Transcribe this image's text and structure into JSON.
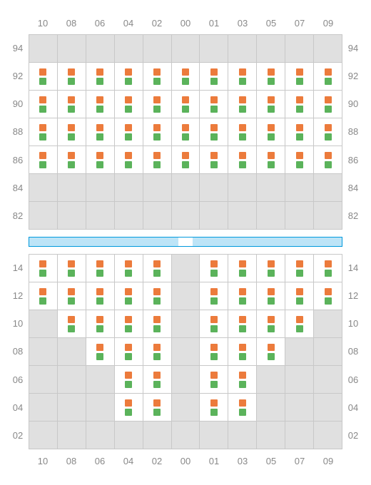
{
  "structure": {
    "type": "heatmap",
    "columns": 11,
    "background_color": "#ffffff",
    "grid_inactive_color": "#e0e0e0",
    "grid_active_color": "#ffffff",
    "grid_border_color": "#c8c8c8",
    "label_color": "#888888",
    "label_fontsize": 13,
    "marker_top_color": "#ec7b3c",
    "marker_bottom_color": "#5bb35b",
    "marker_size": 10,
    "divider_fill": "#bde4f7",
    "divider_border": "#0099dd"
  },
  "xlabels": [
    "10",
    "08",
    "06",
    "04",
    "02",
    "00",
    "01",
    "03",
    "05",
    "07",
    "09"
  ],
  "top": {
    "ylabels": [
      "94",
      "92",
      "90",
      "88",
      "86",
      "84",
      "82"
    ],
    "active_cols_per_row": [
      [],
      [
        0,
        1,
        2,
        3,
        4,
        5,
        6,
        7,
        8,
        9,
        10
      ],
      [
        0,
        1,
        2,
        3,
        4,
        5,
        6,
        7,
        8,
        9,
        10
      ],
      [
        0,
        1,
        2,
        3,
        4,
        5,
        6,
        7,
        8,
        9,
        10
      ],
      [
        0,
        1,
        2,
        3,
        4,
        5,
        6,
        7,
        8,
        9,
        10
      ],
      [],
      []
    ]
  },
  "bottom": {
    "ylabels": [
      "14",
      "12",
      "10",
      "08",
      "06",
      "04",
      "02"
    ],
    "active_cols_per_row": [
      [
        0,
        1,
        2,
        3,
        4,
        6,
        7,
        8,
        9,
        10
      ],
      [
        0,
        1,
        2,
        3,
        4,
        6,
        7,
        8,
        9,
        10
      ],
      [
        1,
        2,
        3,
        4,
        6,
        7,
        8,
        9
      ],
      [
        2,
        3,
        4,
        6,
        7,
        8
      ],
      [
        3,
        4,
        6,
        7
      ],
      [
        3,
        4,
        6,
        7
      ],
      []
    ]
  }
}
